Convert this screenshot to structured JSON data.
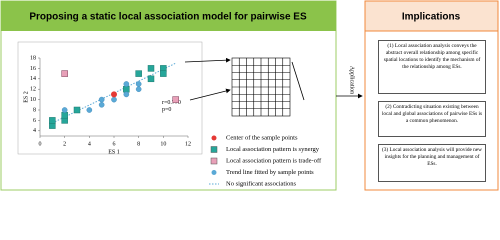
{
  "left_panel": {
    "title": "Proposing a static local association model for pairwise ES"
  },
  "scatter": {
    "x_label": "ES 1",
    "y_label": "ES 2",
    "xlim": [
      0,
      12
    ],
    "ylim": [
      3,
      18
    ],
    "xticks": [
      0,
      2,
      4,
      6,
      8,
      10,
      12
    ],
    "yticks": [
      4,
      6,
      8,
      10,
      12,
      14,
      16,
      18
    ],
    "stats": [
      "r=0.770",
      "p=0"
    ],
    "colors": {
      "center": "#e53935",
      "synergy": "#26a69a",
      "tradeoff": "#e8a0b8",
      "trend": "#5aa9d6"
    },
    "trend_line": {
      "x": [
        1,
        11
      ],
      "y": [
        5.5,
        17
      ]
    },
    "points": [
      {
        "x": 1,
        "y": 5,
        "kind": "synergy"
      },
      {
        "x": 1,
        "y": 6,
        "kind": "synergy"
      },
      {
        "x": 2,
        "y": 6,
        "kind": "synergy"
      },
      {
        "x": 2,
        "y": 7,
        "kind": "synergy"
      },
      {
        "x": 3,
        "y": 8,
        "kind": "synergy"
      },
      {
        "x": 7,
        "y": 12,
        "kind": "synergy"
      },
      {
        "x": 8,
        "y": 15,
        "kind": "synergy"
      },
      {
        "x": 9,
        "y": 14,
        "kind": "synergy"
      },
      {
        "x": 9,
        "y": 16,
        "kind": "synergy"
      },
      {
        "x": 10,
        "y": 16,
        "kind": "synergy"
      },
      {
        "x": 10,
        "y": 15,
        "kind": "synergy"
      },
      {
        "x": 2,
        "y": 8,
        "kind": "trend"
      },
      {
        "x": 4,
        "y": 8,
        "kind": "trend"
      },
      {
        "x": 5,
        "y": 9,
        "kind": "trend"
      },
      {
        "x": 5,
        "y": 10,
        "kind": "trend"
      },
      {
        "x": 6,
        "y": 10,
        "kind": "trend"
      },
      {
        "x": 7,
        "y": 11,
        "kind": "trend"
      },
      {
        "x": 7,
        "y": 13,
        "kind": "trend"
      },
      {
        "x": 8,
        "y": 12,
        "kind": "trend"
      },
      {
        "x": 8,
        "y": 13,
        "kind": "trend"
      },
      {
        "x": 2,
        "y": 15,
        "kind": "tradeoff"
      },
      {
        "x": 11,
        "y": 10,
        "kind": "tradeoff"
      },
      {
        "x": 6,
        "y": 11,
        "kind": "center"
      }
    ]
  },
  "legend": [
    "Center of the sample points",
    "Local association pattern is synergy",
    "Local association pattern is trade-off",
    "Trend line fitted by sample points",
    "No significant associations"
  ],
  "application": "Application",
  "implications": {
    "title": "Implications",
    "items": [
      "(1) Local association analysis conveys the abstract overall relationship among specific spatial locations to identify the mechanism of the relationship among ESs.",
      "(2) Contradicting situation existing between local and global associations of pairwise ESs is a common phenomenon.",
      "(3) Local association analysis will provide new insights for the planning and management of ESs."
    ]
  }
}
